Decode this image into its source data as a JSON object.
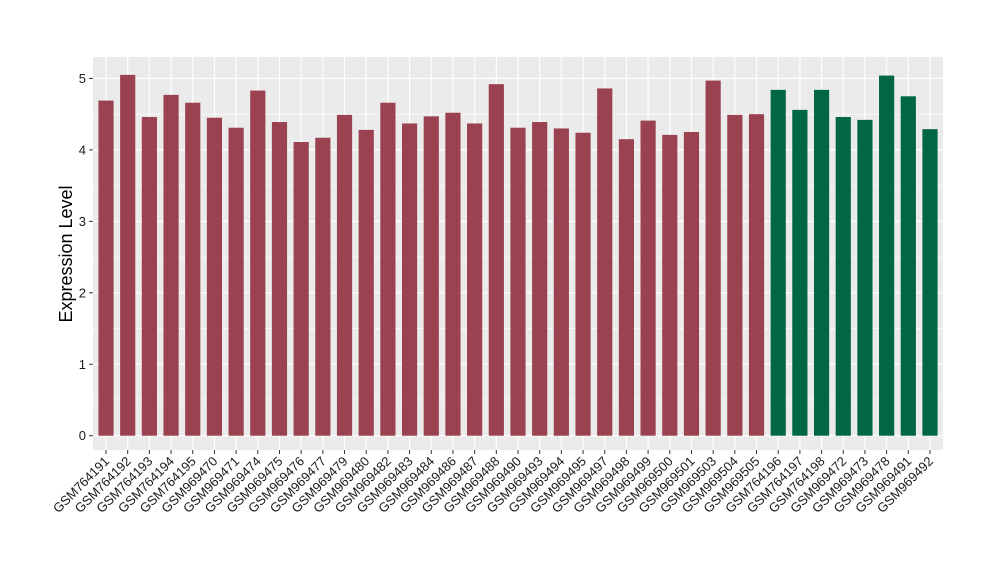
{
  "chart_data": {
    "type": "bar",
    "title": "",
    "xlabel": "",
    "ylabel": "Expression Level",
    "ylim": [
      -0.2,
      5.3
    ],
    "yticks": [
      0,
      1,
      2,
      3,
      4,
      5
    ],
    "grid": true,
    "legend": "none",
    "colors": {
      "group1": "#9b4250",
      "group2": "#006644",
      "panel_bg": "#ebebeb",
      "grid": "#ffffff"
    },
    "categories": [
      "GSM764191",
      "GSM764192",
      "GSM764193",
      "GSM764194",
      "GSM764195",
      "GSM969470",
      "GSM969471",
      "GSM969474",
      "GSM969475",
      "GSM969476",
      "GSM969477",
      "GSM969479",
      "GSM969480",
      "GSM969482",
      "GSM969483",
      "GSM969484",
      "GSM969486",
      "GSM969487",
      "GSM969488",
      "GSM969490",
      "GSM969493",
      "GSM969494",
      "GSM969495",
      "GSM969497",
      "GSM969498",
      "GSM969499",
      "GSM969500",
      "GSM969501",
      "GSM969503",
      "GSM969504",
      "GSM969505",
      "GSM764196",
      "GSM764197",
      "GSM764198",
      "GSM969472",
      "GSM969473",
      "GSM969478",
      "GSM969491",
      "GSM969492"
    ],
    "values": [
      4.69,
      5.05,
      4.46,
      4.77,
      4.66,
      4.45,
      4.31,
      4.83,
      4.39,
      4.11,
      4.17,
      4.49,
      4.28,
      4.66,
      4.37,
      4.47,
      4.52,
      4.37,
      4.92,
      4.31,
      4.39,
      4.3,
      4.24,
      4.86,
      4.15,
      4.41,
      4.21,
      4.25,
      4.97,
      4.49,
      4.5,
      4.84,
      4.56,
      4.84,
      4.46,
      4.42,
      5.04,
      4.75,
      4.29
    ],
    "groups": [
      1,
      1,
      1,
      1,
      1,
      1,
      1,
      1,
      1,
      1,
      1,
      1,
      1,
      1,
      1,
      1,
      1,
      1,
      1,
      1,
      1,
      1,
      1,
      1,
      1,
      1,
      1,
      1,
      1,
      1,
      1,
      2,
      2,
      2,
      2,
      2,
      2,
      2,
      2
    ]
  }
}
